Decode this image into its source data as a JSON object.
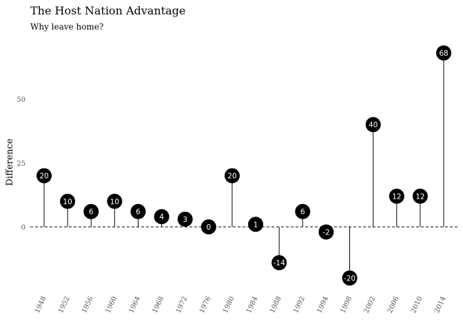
{
  "chart_data": {
    "type": "lollipop",
    "title": "The Host Nation Advantage",
    "subtitle": "Why leave home?",
    "xlabel": "",
    "ylabel": "Difference",
    "categories": [
      "1948",
      "1952",
      "1956",
      "1960",
      "1964",
      "1968",
      "1972",
      "1976",
      "1980",
      "1984",
      "1988",
      "1992",
      "1994",
      "1998",
      "2002",
      "2006",
      "2010",
      "2014"
    ],
    "values": [
      20,
      10,
      6,
      10,
      6,
      4,
      3,
      0,
      20,
      1,
      -14,
      6,
      -2,
      -20,
      40,
      12,
      12,
      68
    ],
    "data_labels": [
      "20",
      "10",
      "6",
      "10",
      "6",
      "4",
      "3",
      "0",
      "20",
      "1",
      "-14",
      "6",
      "-2",
      "-20",
      "40",
      "12",
      "12",
      "68"
    ],
    "yticks": [
      0,
      25,
      50
    ],
    "ytick_labels": [
      "0",
      "25",
      "50"
    ],
    "ylim": [
      -24,
      72
    ],
    "grid": false,
    "reference_line": 0,
    "colors": {
      "marker": "#000000",
      "marker_text": "#ffffff",
      "stem": "#000000"
    }
  }
}
